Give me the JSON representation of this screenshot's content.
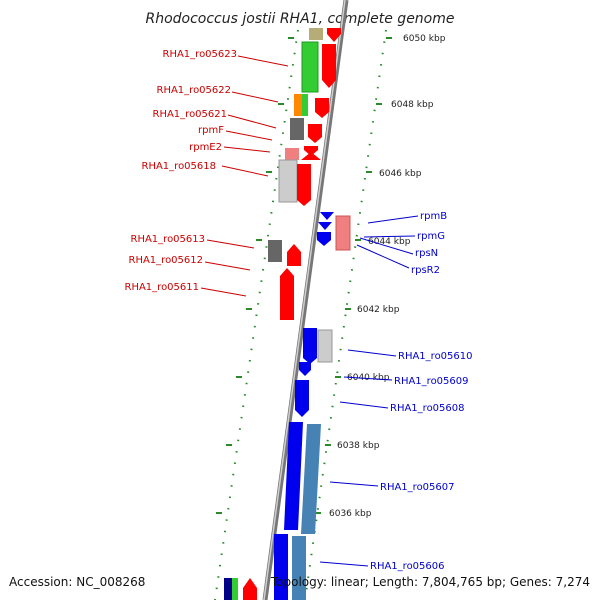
{
  "title": "Rhodococcus jostii RHA1, complete genome",
  "accession": "Accession: NC_008268",
  "topology": "Topology: linear; Length: 7,804,765 bp; Genes: 7,274",
  "colors": {
    "forward_label": "#cc0000",
    "reverse_label": "#0000cc",
    "forward_gene": "#ff0000",
    "reverse_gene": "#0000ee",
    "tick": "#2a8a2a",
    "backbone": "#888888"
  },
  "kbp_ticks": [
    "6050 kbp",
    "6048 kbp",
    "6046 kbp",
    "6044 kbp",
    "6042 kbp",
    "6040 kbp",
    "6038 kbp",
    "6036 kbp"
  ],
  "forward_labels": [
    "RHA1_ro05623",
    "RHA1_ro05622",
    "RHA1_ro05621",
    "rpmF",
    "rpmE2",
    "RHA1_ro05618",
    "RHA1_ro05613",
    "RHA1_ro05612",
    "RHA1_ro05611"
  ],
  "reverse_labels": [
    "rpmB",
    "rpmG",
    "rpsN",
    "rpsR2",
    "RHA1_ro05610",
    "RHA1_ro05609",
    "RHA1_ro05608",
    "RHA1_ro05607",
    "RHA1_ro05606"
  ]
}
